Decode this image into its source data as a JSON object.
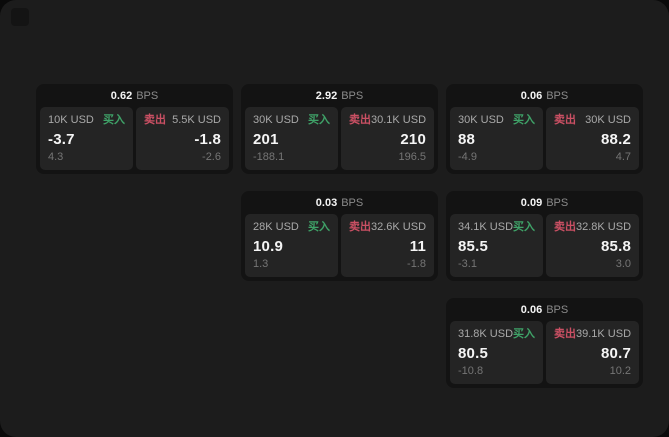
{
  "labels": {
    "bps_unit": "BPS",
    "buy": "买入",
    "sell": "卖出"
  },
  "colors": {
    "page_background": "#1c1c1c",
    "card_background": "#131313",
    "panel_background": "#242424",
    "buy_green": "#3fa268",
    "sell_red": "#cb5064",
    "primary_text": "#f5f5f5",
    "secondary_text": "#a9a9a9",
    "muted_text": "#757575"
  },
  "cards": [
    {
      "bps": "0.62",
      "buy": {
        "amount": "10K USD",
        "price": "-3.7",
        "change": "4.3"
      },
      "sell": {
        "amount": "5.5K USD",
        "price": "-1.8",
        "change": "-2.6"
      }
    },
    {
      "bps": "2.92",
      "buy": {
        "amount": "30K USD",
        "price": "201",
        "change": "-188.1"
      },
      "sell": {
        "amount": "30.1K USD",
        "price": "210",
        "change": "196.5"
      }
    },
    {
      "bps": "0.06",
      "buy": {
        "amount": "30K USD",
        "price": "88",
        "change": "-4.9"
      },
      "sell": {
        "amount": "30K USD",
        "price": "88.2",
        "change": "4.7"
      }
    },
    {
      "bps": "0.03",
      "buy": {
        "amount": "28K USD",
        "price": "10.9",
        "change": "1.3"
      },
      "sell": {
        "amount": "32.6K USD",
        "price": "11",
        "change": "-1.8"
      }
    },
    {
      "bps": "0.09",
      "buy": {
        "amount": "34.1K USD",
        "price": "85.5",
        "change": "-3.1"
      },
      "sell": {
        "amount": "32.8K USD",
        "price": "85.8",
        "change": "3.0"
      }
    },
    {
      "bps": "0.06",
      "buy": {
        "amount": "31.8K USD",
        "price": "80.5",
        "change": "-10.8"
      },
      "sell": {
        "amount": "39.1K USD",
        "price": "80.7",
        "change": "10.2"
      }
    }
  ]
}
